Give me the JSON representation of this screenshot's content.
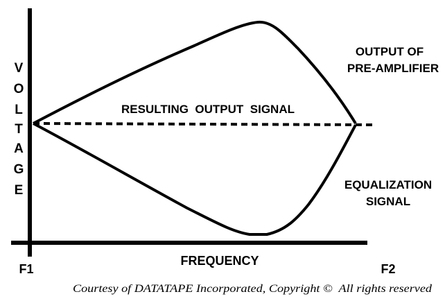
{
  "axes": {
    "y_label_letters": [
      "V",
      "O",
      "L",
      "T",
      "A",
      "G",
      "E"
    ],
    "x_label": "FREQUENCY",
    "x_start_label": "F1",
    "x_end_label": "F2"
  },
  "curves": {
    "upper_label_line1": "OUTPUT OF",
    "upper_label_line2": "PRE-AMPLIFIER",
    "middle_label": "RESULTING  OUTPUT  SIGNAL",
    "lower_label_line1": "EQUALIZATION",
    "lower_label_line2": "SIGNAL"
  },
  "footer": {
    "credit": "Courtesy of DATATAPE Incorporated, Copyright ©  All rights reserved"
  }
}
